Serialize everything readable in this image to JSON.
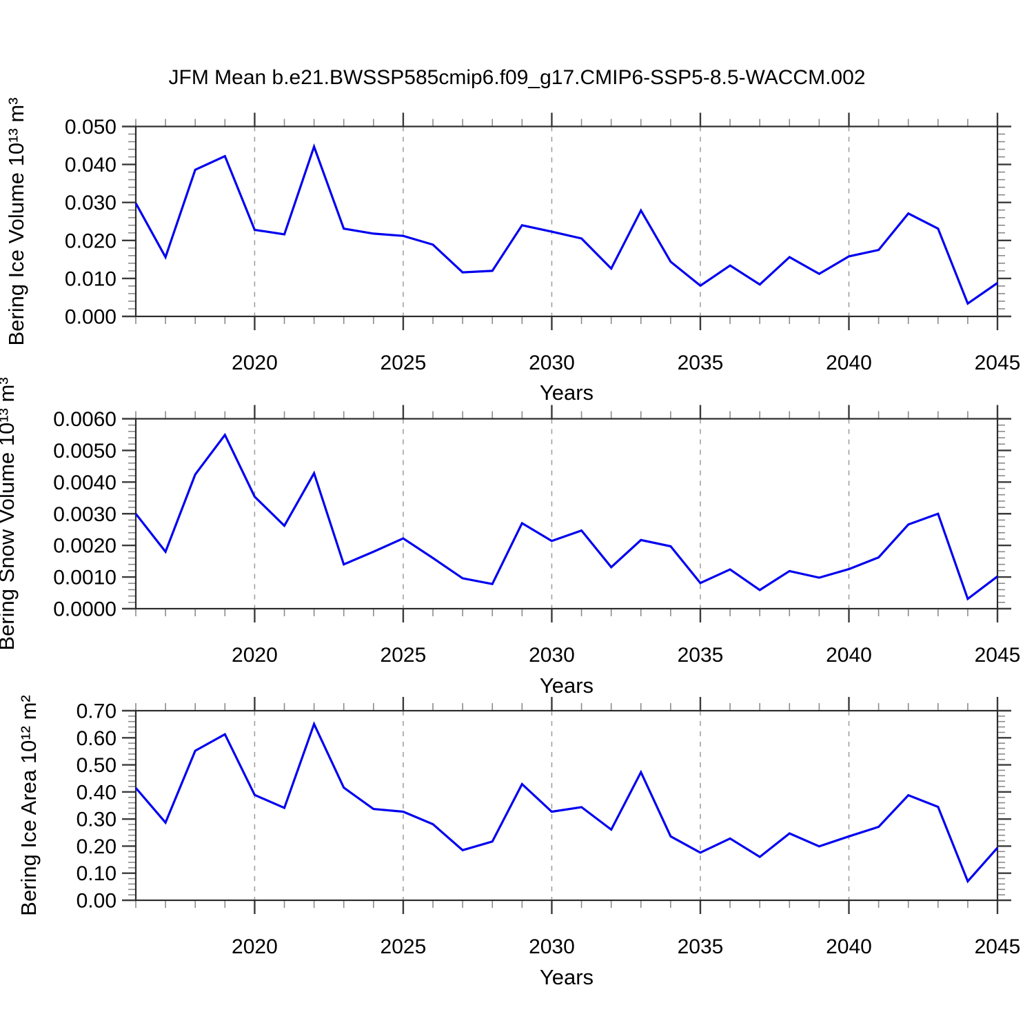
{
  "title": "JFM Mean b.e21.BWSSP585cmip6.f09_g17.CMIP6-SSP5-8.5-WACCM.002",
  "colors": {
    "background": "#ffffff",
    "line": "#0000f0",
    "frame": "#2b2b2b",
    "tick_major": "#3a3a3a",
    "tick_minor": "#8a8a8a",
    "gridline": "#9a9a9a",
    "text": "#000000"
  },
  "x_axis": {
    "label": "Years",
    "start": 2016,
    "end": 2045,
    "major_tick_years": [
      2020,
      2025,
      2030,
      2035,
      2040,
      2045
    ],
    "minor_step_years": 1,
    "grid": "vertical-dashed-at-major-ticks"
  },
  "chart_data": [
    {
      "type": "line",
      "title": "",
      "xlabel": "Years",
      "ylabel": "Bering Ice Volume 10¹³ m³",
      "legend": "none",
      "grid": "vertical-dashed",
      "xlim": [
        2016,
        2045
      ],
      "ylim": [
        0.0,
        0.05
      ],
      "ytick_major_step": 0.01,
      "ytick_minor_step": 0.002,
      "ytick_decimals": 3,
      "x": [
        2016,
        2017,
        2018,
        2019,
        2020,
        2021,
        2022,
        2023,
        2024,
        2025,
        2026,
        2027,
        2028,
        2029,
        2030,
        2031,
        2032,
        2033,
        2034,
        2035,
        2036,
        2037,
        2038,
        2039,
        2040,
        2041,
        2042,
        2043,
        2044,
        2045
      ],
      "values": [
        0.0298,
        0.0156,
        0.0386,
        0.0422,
        0.0228,
        0.0216,
        0.0447,
        0.0231,
        0.0218,
        0.0212,
        0.0189,
        0.0116,
        0.012,
        0.024,
        0.0223,
        0.0205,
        0.0126,
        0.0279,
        0.0144,
        0.0081,
        0.0134,
        0.0084,
        0.0156,
        0.0112,
        0.0158,
        0.0175,
        0.0271,
        0.0231,
        0.0034,
        0.0088
      ]
    },
    {
      "type": "line",
      "title": "",
      "xlabel": "Years",
      "ylabel": "Bering Snow Volume 10¹³ m³",
      "legend": "none",
      "grid": "vertical-dashed",
      "xlim": [
        2016,
        2045
      ],
      "ylim": [
        0.0,
        0.006
      ],
      "ytick_major_step": 0.001,
      "ytick_minor_step": 0.0002,
      "ytick_decimals": 4,
      "x": [
        2016,
        2017,
        2018,
        2019,
        2020,
        2021,
        2022,
        2023,
        2024,
        2025,
        2026,
        2027,
        2028,
        2029,
        2030,
        2031,
        2032,
        2033,
        2034,
        2035,
        2036,
        2037,
        2038,
        2039,
        2040,
        2041,
        2042,
        2043,
        2044,
        2045
      ],
      "values": [
        0.003,
        0.0018,
        0.00424,
        0.00549,
        0.00354,
        0.00262,
        0.00428,
        0.0014,
        0.0018,
        0.00222,
        0.0016,
        0.00096,
        0.00078,
        0.0027,
        0.00214,
        0.00247,
        0.00131,
        0.00217,
        0.00197,
        0.00081,
        0.00124,
        0.00059,
        0.00119,
        0.00098,
        0.00125,
        0.00162,
        0.00266,
        0.003,
        0.00031,
        0.00102
      ]
    },
    {
      "type": "line",
      "title": "",
      "xlabel": "Years",
      "ylabel": "Bering Ice Area 10¹² m²",
      "legend": "none",
      "grid": "vertical-dashed",
      "xlim": [
        2016,
        2045
      ],
      "ylim": [
        0.0,
        0.7
      ],
      "ytick_major_step": 0.1,
      "ytick_minor_step": 0.02,
      "ytick_decimals": 2,
      "x": [
        2016,
        2017,
        2018,
        2019,
        2020,
        2021,
        2022,
        2023,
        2024,
        2025,
        2026,
        2027,
        2028,
        2029,
        2030,
        2031,
        2032,
        2033,
        2034,
        2035,
        2036,
        2037,
        2038,
        2039,
        2040,
        2041,
        2042,
        2043,
        2044,
        2045
      ],
      "values": [
        0.415,
        0.287,
        0.552,
        0.613,
        0.389,
        0.341,
        0.651,
        0.416,
        0.337,
        0.327,
        0.281,
        0.185,
        0.217,
        0.429,
        0.327,
        0.344,
        0.261,
        0.473,
        0.236,
        0.176,
        0.228,
        0.16,
        0.247,
        0.199,
        0.236,
        0.271,
        0.388,
        0.345,
        0.07,
        0.194
      ]
    }
  ]
}
